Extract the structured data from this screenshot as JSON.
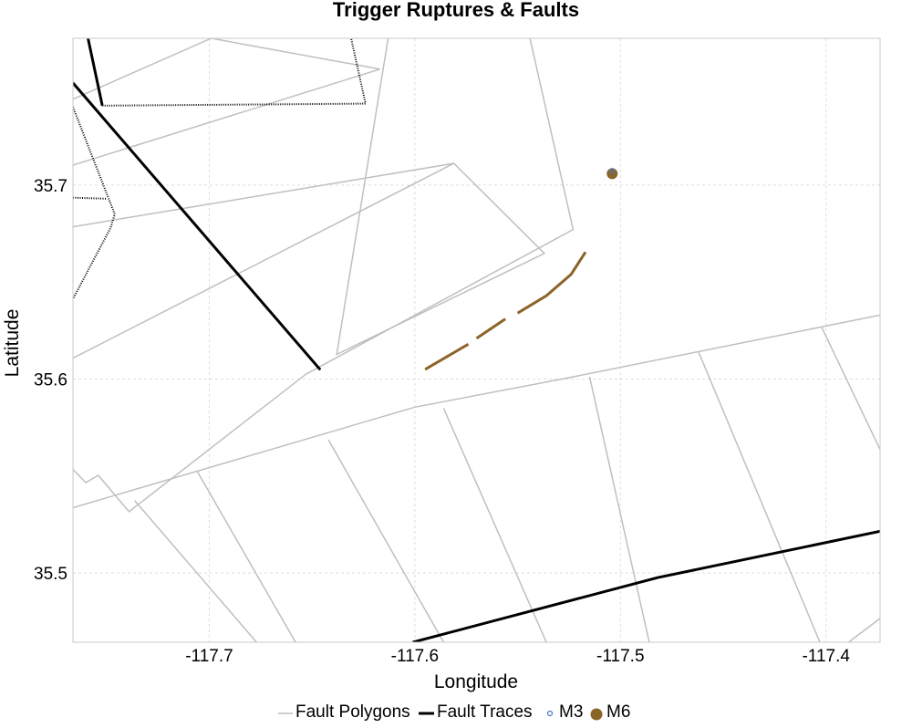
{
  "chart_data": {
    "type": "map",
    "title": "Trigger Ruptures & Faults",
    "xlabel": "Longitude",
    "ylabel": "Latitude",
    "xlim": [
      -117.7663,
      -117.3737
    ],
    "ylim": [
      35.4643,
      35.7757
    ],
    "x_ticks": [
      -117.7,
      -117.6,
      -117.5,
      -117.4
    ],
    "y_ticks": [
      35.5,
      35.6,
      35.7
    ],
    "x_tick_labels": [
      "-117.7",
      "-117.6",
      "-117.5",
      "-117.4"
    ],
    "y_tick_labels": [
      "35.5",
      "35.6",
      "35.7"
    ],
    "grid": true,
    "legend_placement": "bottom",
    "colors": {
      "fault_polygons": "#bfbfbf",
      "fault_traces": "#000000",
      "m3": "#4a78c2",
      "m6": "#8b6428",
      "rupture": "#8b6428",
      "grid": "#dddddd"
    },
    "legend": [
      {
        "key": "polygons",
        "label": "Fault Polygons"
      },
      {
        "key": "traces",
        "label": "Fault Traces"
      },
      {
        "key": "m3",
        "label": "M3"
      },
      {
        "key": "m6",
        "label": "M6"
      }
    ],
    "fault_polygons": [
      [
        [
          -117.7663,
          35.7443
        ],
        [
          -117.699,
          35.7757
        ]
      ],
      [
        [
          -117.7663,
          35.7103
        ],
        [
          -117.617,
          35.7598
        ],
        [
          -117.699,
          35.7757
        ]
      ],
      [
        [
          -117.7663,
          35.6785
        ],
        [
          -117.581,
          35.7112
        ],
        [
          -117.537,
          35.6648
        ],
        [
          -117.638,
          35.6127
        ],
        [
          -117.613,
          35.7757
        ]
      ],
      [
        [
          -117.7663,
          35.6108
        ],
        [
          -117.581,
          35.7112
        ]
      ],
      [
        [
          -117.544,
          35.7757
        ],
        [
          -117.523,
          35.6771
        ],
        [
          -117.653,
          35.6025
        ],
        [
          -117.739,
          35.5316
        ],
        [
          -117.754,
          35.5504
        ],
        [
          -117.76,
          35.5466
        ],
        [
          -117.7663,
          35.5534
        ]
      ],
      [
        [
          -117.7663,
          35.5337
        ],
        [
          -117.6,
          35.5855
        ],
        [
          -117.527,
          35.6003
        ],
        [
          -117.3737,
          35.633
        ]
      ],
      [
        [
          -117.7363,
          35.5374
        ],
        [
          -117.677,
          35.4643
        ]
      ],
      [
        [
          -117.706,
          35.5527
        ],
        [
          -117.658,
          35.4643
        ]
      ],
      [
        [
          -117.642,
          35.5686
        ],
        [
          -117.586,
          35.4643
        ]
      ],
      [
        [
          -117.586,
          35.5849
        ],
        [
          -117.536,
          35.4643
        ]
      ],
      [
        [
          -117.515,
          35.6012
        ],
        [
          -117.486,
          35.4643
        ]
      ],
      [
        [
          -117.462,
          35.614
        ],
        [
          -117.403,
          35.4643
        ]
      ],
      [
        [
          -117.402,
          35.6265
        ],
        [
          -117.3737,
          35.5637
        ]
      ],
      [
        [
          -117.3737,
          35.4766
        ],
        [
          -117.389,
          35.4643
        ]
      ]
    ],
    "fault_traces": [
      [
        [
          -117.759,
          35.7757
        ],
        [
          -117.752,
          35.741
        ]
      ],
      [
        [
          -117.7663,
          35.7527
        ],
        [
          -117.646,
          35.6048
        ]
      ],
      [
        [
          -117.601,
          35.4643
        ],
        [
          -117.482,
          35.4976
        ],
        [
          -117.3737,
          35.5215
        ]
      ]
    ],
    "dotted_traces": [
      [
        [
          -117.7663,
          35.6935
        ],
        [
          -117.75,
          35.693
        ]
      ],
      [
        [
          -117.752,
          35.741
        ],
        [
          -117.624,
          35.742
        ],
        [
          -117.631,
          35.7757
        ]
      ],
      [
        [
          -117.7663,
          35.7403
        ],
        [
          -117.746,
          35.685
        ],
        [
          -117.748,
          35.678
        ],
        [
          -117.7663,
          35.6413
        ]
      ]
    ],
    "rupture_segments": [
      [
        [
          -117.595,
          35.605
        ],
        [
          -117.574,
          35.618
        ]
      ],
      [
        [
          -117.57,
          35.621
        ],
        [
          -117.556,
          35.631
        ]
      ],
      [
        [
          -117.55,
          35.634
        ],
        [
          -117.536,
          35.643
        ],
        [
          -117.524,
          35.654
        ],
        [
          -117.517,
          35.6655
        ]
      ]
    ],
    "m3_points": [
      [
        -117.504,
        35.7074
      ]
    ],
    "m6_points": [
      [
        -117.504,
        35.7059
      ]
    ]
  }
}
